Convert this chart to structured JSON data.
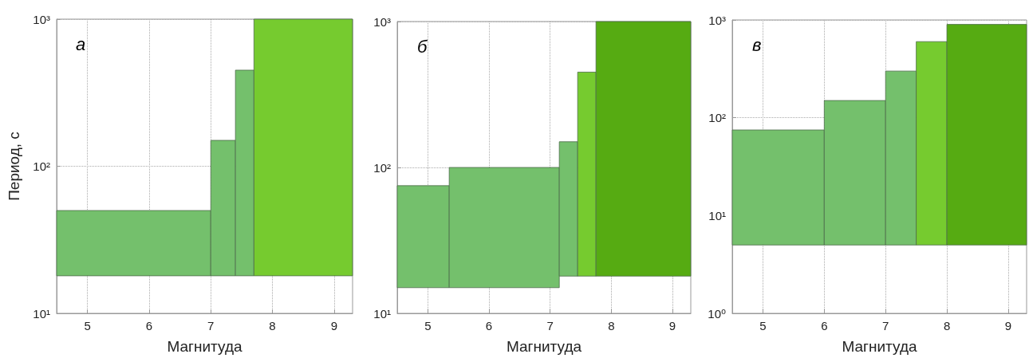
{
  "chart_data": [
    {
      "type": "histogram",
      "bins": [
        4.5,
        7.0,
        7.4,
        7.7,
        9.3
      ],
      "base": [
        18,
        18,
        18,
        18
      ],
      "values": [
        32,
        132,
        432,
        982
      ],
      "colors": [
        "#74c06c",
        "#74c06c",
        "#74c06c",
        "#76cb2f"
      ],
      "xlabel": "Магнитуда",
      "ylabel": "Период, с",
      "annotations": [
        "а"
      ],
      "log": "y",
      "grid": true,
      "xlim": [
        4.5,
        9.3
      ],
      "xticks": [
        5,
        6,
        7,
        8,
        9
      ],
      "ylim": [
        10,
        1000
      ],
      "yticks": [
        {
          "value": 10,
          "label": "10¹"
        },
        {
          "value": 100,
          "label": "10²"
        },
        {
          "value": 1000,
          "label": "10³"
        }
      ]
    },
    {
      "type": "histogram",
      "bins": [
        4.5,
        5.35,
        7.15,
        7.45,
        7.75,
        9.3
      ],
      "base": [
        15,
        15,
        18,
        18,
        18
      ],
      "values": [
        60,
        85,
        132,
        432,
        982
      ],
      "colors": [
        "#74c06c",
        "#74c06c",
        "#74c06c",
        "#76cb2f",
        "#56ab12"
      ],
      "xlabel": "Магнитуда",
      "annotations": [
        "б"
      ],
      "log": "y",
      "grid": true,
      "xlim": [
        4.5,
        9.3
      ],
      "xticks": [
        5,
        6,
        7,
        8,
        9
      ],
      "ylim": [
        10,
        1000
      ],
      "yticks": [
        {
          "value": 10,
          "label": "10¹"
        },
        {
          "value": 100,
          "label": "10²"
        },
        {
          "value": 1000,
          "label": "10³"
        }
      ]
    },
    {
      "type": "histogram",
      "bins": [
        4.5,
        6.0,
        7.0,
        7.5,
        8.0,
        9.3
      ],
      "base": [
        5,
        5,
        5,
        5,
        5
      ],
      "values": [
        70,
        145,
        295,
        595,
        895
      ],
      "colors": [
        "#74c06c",
        "#74c06c",
        "#74c06c",
        "#76cb2f",
        "#56ab12"
      ],
      "xlabel": "Магнитуда",
      "annotations": [
        "в"
      ],
      "log": "y",
      "grid": true,
      "xlim": [
        4.5,
        9.3
      ],
      "xticks": [
        5,
        6,
        7,
        8,
        9
      ],
      "ylim": [
        1,
        1000
      ],
      "yticks": [
        {
          "value": 1,
          "label": "10⁰"
        },
        {
          "value": 10,
          "label": "10¹"
        },
        {
          "value": 100,
          "label": "10²"
        },
        {
          "value": 1000,
          "label": "10³"
        }
      ]
    }
  ]
}
